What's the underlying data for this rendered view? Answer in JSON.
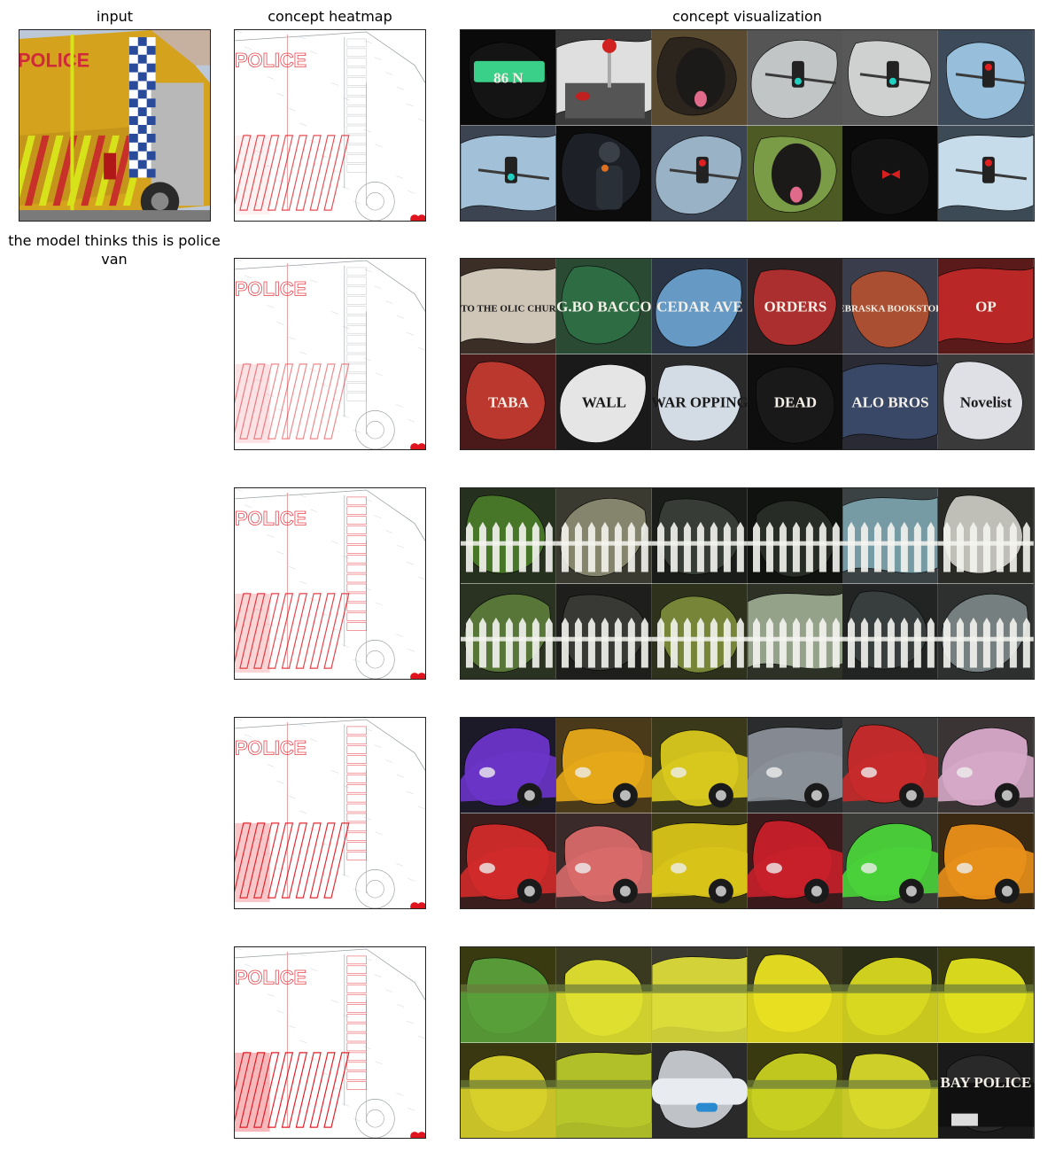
{
  "titles": {
    "input": "input",
    "heatmap": "concept heatmap",
    "visualization": "concept visualization"
  },
  "prediction": "the model thinks this is police van",
  "input_image": {
    "label_text": "POLICE",
    "body_color": "#d4a21c",
    "stripe_yellow": "#d8e21a",
    "stripe_red": "#c8302a",
    "check_blue": "#2a4a9a"
  },
  "heatmap_color": "#e0141e",
  "heatmap_text": "POLICE",
  "concepts": [
    {
      "name": "traffic-lights-and-signs",
      "tiles": [
        {
          "bg": "#0a0a0a",
          "blob": "#151515",
          "obj": "sign-green",
          "text": "86 N"
        },
        {
          "bg": "#3a3a3a",
          "blob": "#e8e8e8",
          "obj": "joystick-red",
          "text": ""
        },
        {
          "bg": "#5a4a30",
          "blob": "#2a241e",
          "obj": "dog",
          "text": ""
        },
        {
          "bg": "#555555",
          "blob": "#c8cccc",
          "obj": "light-green",
          "text": ""
        },
        {
          "bg": "#585858",
          "blob": "#d6d8d8",
          "obj": "light-green",
          "text": ""
        },
        {
          "bg": "#3c4a5a",
          "blob": "#9cc6e4",
          "obj": "light-red",
          "text": ""
        },
        {
          "bg": "#3c4452",
          "blob": "#a8c8e0",
          "obj": "light-green",
          "text": ""
        },
        {
          "bg": "#0c0c0c",
          "blob": "#1e2228",
          "obj": "robot",
          "text": ""
        },
        {
          "bg": "#3a4452",
          "blob": "#a0b8cc",
          "obj": "light-red",
          "text": ""
        },
        {
          "bg": "#4e5a24",
          "blob": "#7ea048",
          "obj": "dog",
          "text": ""
        },
        {
          "bg": "#0a0a0a",
          "blob": "#141414",
          "obj": "bow-red",
          "text": ""
        },
        {
          "bg": "#3c4a56",
          "blob": "#cfe4f2",
          "obj": "light-red",
          "text": ""
        }
      ]
    },
    {
      "name": "signage-text",
      "tiles": [
        {
          "bg": "#3a2e26",
          "blob": "#d8cfc0",
          "obj": "text",
          "text": "TO THE OLIC CHUR"
        },
        {
          "bg": "#2a4a34",
          "blob": "#2f6e45",
          "obj": "text",
          "text": "G.BO BACCO"
        },
        {
          "bg": "#2a3444",
          "blob": "#6aa0cc",
          "obj": "text",
          "text": "CEDAR AVE"
        },
        {
          "bg": "#2a2222",
          "blob": "#b23030",
          "obj": "text",
          "text": "ORDERS"
        },
        {
          "bg": "#3a3e4c",
          "blob": "#b05030",
          "obj": "text",
          "text": "NEBRASKA BOOKSTORE"
        },
        {
          "bg": "#5a1a1a",
          "blob": "#c02828",
          "obj": "text",
          "text": "OP"
        },
        {
          "bg": "#4a1a1a",
          "blob": "#c03a30",
          "obj": "text",
          "text": "TABA"
        },
        {
          "bg": "#1a1a1a",
          "blob": "#f0f0f0",
          "obj": "text",
          "text": "WALL"
        },
        {
          "bg": "#2a2a2a",
          "blob": "#dde6f0",
          "obj": "text",
          "text": "WAR OPPING"
        },
        {
          "bg": "#0e0e0e",
          "blob": "#1a1a1a",
          "obj": "text",
          "text": "DEAD"
        },
        {
          "bg": "#2a2a34",
          "blob": "#3a4a6a",
          "obj": "text",
          "text": "ALO BROS"
        },
        {
          "bg": "#3a3a3a",
          "blob": "#e8e8f0",
          "obj": "text",
          "text": "Novelist"
        }
      ]
    },
    {
      "name": "white-picket-fence",
      "tiles": [
        {
          "bg": "#26301e",
          "blob": "#4a7a2a",
          "obj": "fence",
          "text": ""
        },
        {
          "bg": "#3a3a30",
          "blob": "#8a8870",
          "obj": "fence",
          "text": ""
        },
        {
          "bg": "#1a1c1a",
          "blob": "#3a3e38",
          "obj": "fence",
          "text": ""
        },
        {
          "bg": "#101210",
          "blob": "#2a2e28",
          "obj": "fence",
          "text": ""
        },
        {
          "bg": "#3a4244",
          "blob": "#7aa0aa",
          "obj": "fence",
          "text": ""
        },
        {
          "bg": "#2a2a26",
          "blob": "#c8c8c0",
          "obj": "fence",
          "text": ""
        },
        {
          "bg": "#2a3222",
          "blob": "#5a7a3a",
          "obj": "fence",
          "text": ""
        },
        {
          "bg": "#1e1e1c",
          "blob": "#3a3a36",
          "obj": "fence",
          "text": ""
        },
        {
          "bg": "#2e321c",
          "blob": "#7a8a3a",
          "obj": "fence",
          "text": ""
        },
        {
          "bg": "#2e3226",
          "blob": "#9aa890",
          "obj": "fence",
          "text": ""
        },
        {
          "bg": "#222424",
          "blob": "#3a4040",
          "obj": "fence",
          "text": ""
        },
        {
          "bg": "#2e3030",
          "blob": "#7a8484",
          "obj": "fence",
          "text": ""
        }
      ]
    },
    {
      "name": "car-body-and-wheels",
      "tiles": [
        {
          "bg": "#1c1a28",
          "blob": "#6a34c8",
          "obj": "car",
          "text": ""
        },
        {
          "bg": "#4a3a1a",
          "blob": "#e6a81a",
          "obj": "car",
          "text": ""
        },
        {
          "bg": "#3a3a1a",
          "blob": "#d8c81e",
          "obj": "car",
          "text": ""
        },
        {
          "bg": "#2a2c2e",
          "blob": "#8a9098",
          "obj": "car",
          "text": ""
        },
        {
          "bg": "#3a3a3a",
          "blob": "#c82a2a",
          "obj": "car",
          "text": ""
        },
        {
          "bg": "#3a3434",
          "blob": "#d6a8c8",
          "obj": "car",
          "text": ""
        },
        {
          "bg": "#3a1e1e",
          "blob": "#d02a2a",
          "obj": "car",
          "text": ""
        },
        {
          "bg": "#3a2a2a",
          "blob": "#d86a6a",
          "obj": "car",
          "text": ""
        },
        {
          "bg": "#3a3618",
          "blob": "#d8c41a",
          "obj": "car",
          "text": ""
        },
        {
          "bg": "#3a1a1a",
          "blob": "#c8202a",
          "obj": "car",
          "text": ""
        },
        {
          "bg": "#3a3a36",
          "blob": "#4ad23a",
          "obj": "car",
          "text": ""
        },
        {
          "bg": "#3a2a14",
          "blob": "#e8901a",
          "obj": "car",
          "text": ""
        }
      ]
    },
    {
      "name": "yellow-flower-field",
      "tiles": [
        {
          "bg": "#3a3a10",
          "blob": "#5aa03a",
          "obj": "field",
          "text": ""
        },
        {
          "bg": "#3a3a20",
          "blob": "#e0e030",
          "obj": "field",
          "text": ""
        },
        {
          "bg": "#3a3a30",
          "blob": "#dcdc3a",
          "obj": "field",
          "text": ""
        },
        {
          "bg": "#3a3a20",
          "blob": "#e8e020",
          "obj": "field",
          "text": ""
        },
        {
          "bg": "#2a2e18",
          "blob": "#d8d820",
          "obj": "field",
          "text": ""
        },
        {
          "bg": "#3a3a10",
          "blob": "#e0e01e",
          "obj": "field",
          "text": ""
        },
        {
          "bg": "#3a3810",
          "blob": "#d8d02a",
          "obj": "field",
          "text": ""
        },
        {
          "bg": "#3a3a20",
          "blob": "#b8c82a",
          "obj": "field",
          "text": ""
        },
        {
          "bg": "#2a2a2a",
          "blob": "#c8ccd0",
          "obj": "plane",
          "text": ""
        },
        {
          "bg": "#3a3a10",
          "blob": "#c8d020",
          "obj": "field",
          "text": ""
        },
        {
          "bg": "#2e2e18",
          "blob": "#d8d82a",
          "obj": "field",
          "text": ""
        },
        {
          "bg": "#1a1a1a",
          "blob": "#2a2a2a",
          "obj": "car-police",
          "text": "BAY POLICE"
        }
      ]
    }
  ]
}
